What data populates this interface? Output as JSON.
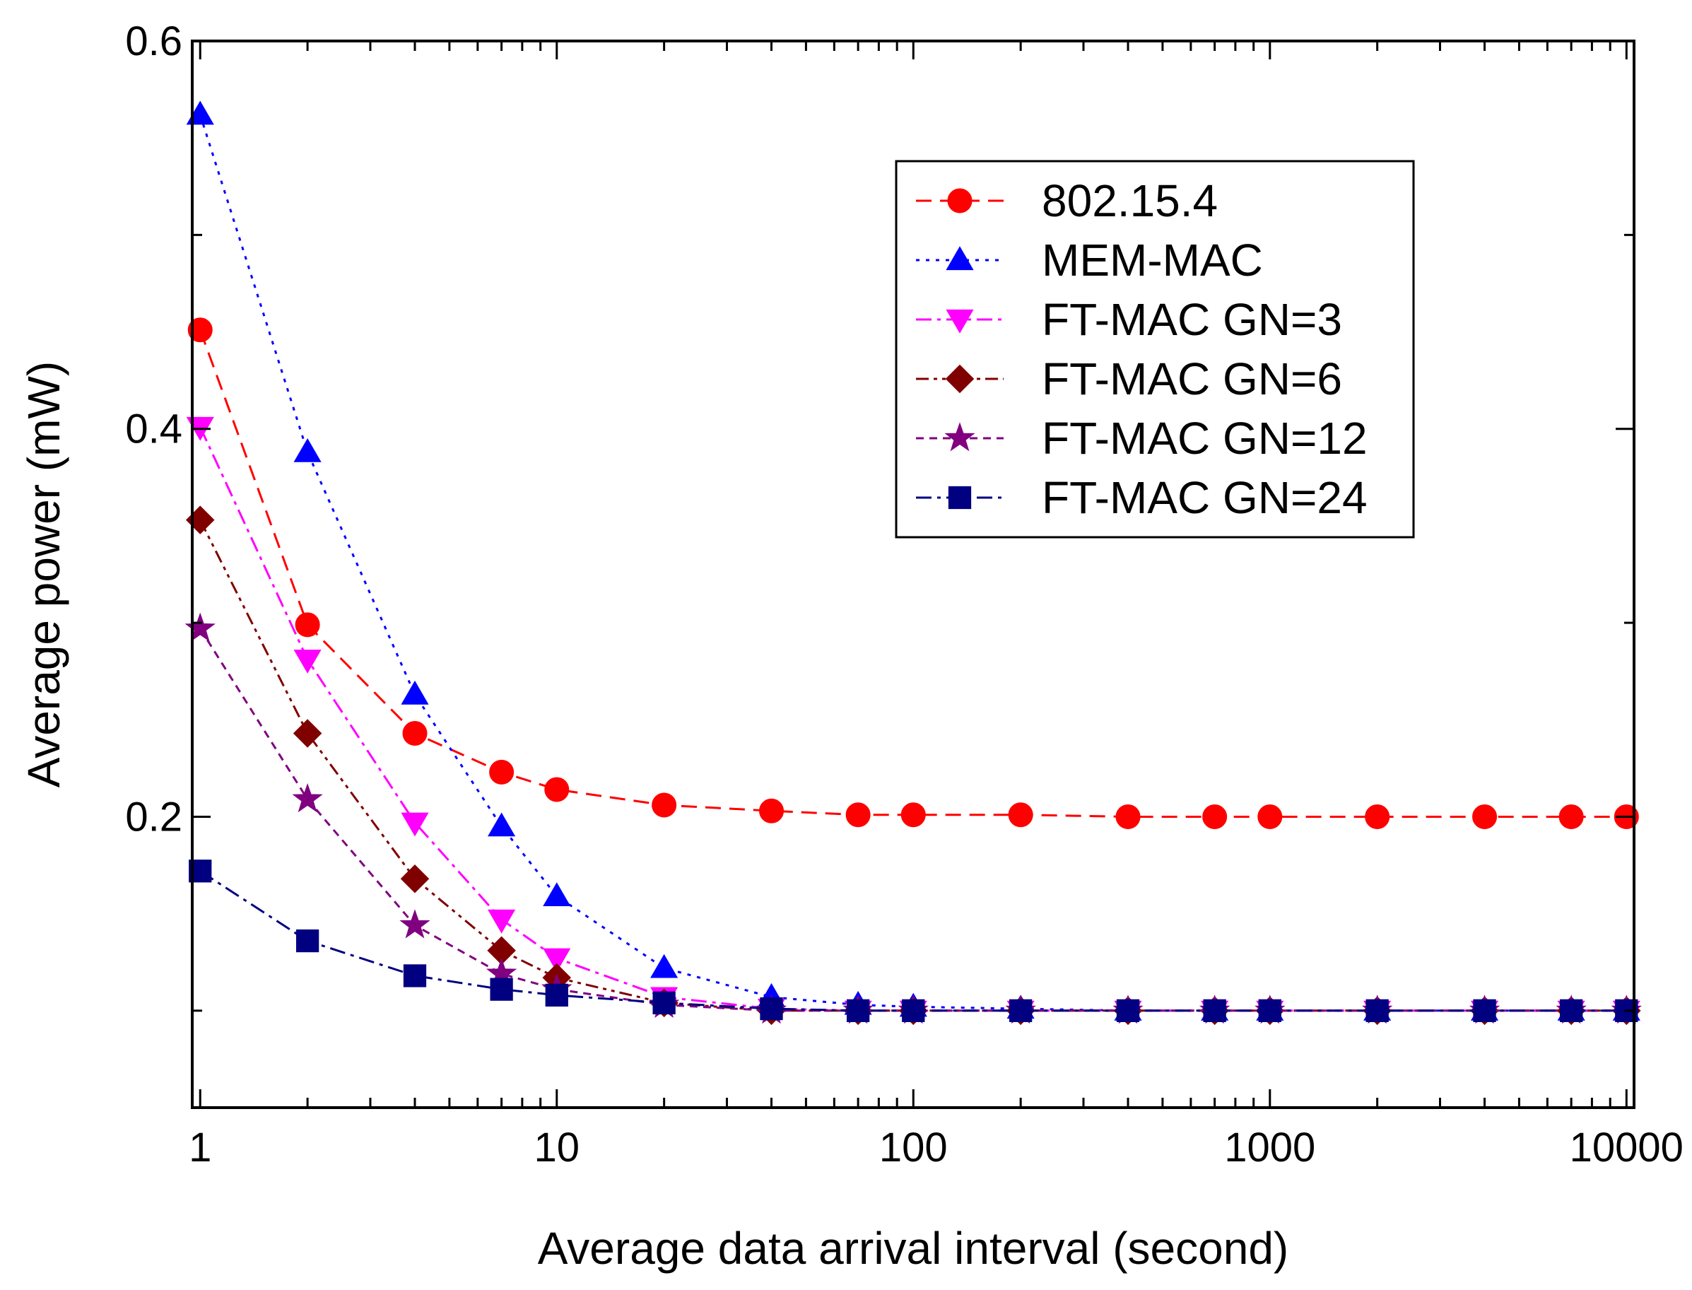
{
  "chart_data": {
    "type": "line",
    "title": "",
    "xlabel": "Average data arrival interval (second)",
    "ylabel": "Average power (mW)",
    "xscale": "log",
    "xlim": [
      0.95,
      10500
    ],
    "ylim": [
      0.05,
      0.6
    ],
    "x_tick_values": [
      1,
      10,
      100,
      1000,
      10000
    ],
    "x_tick_labels": [
      "1",
      "10",
      "100",
      "1000",
      "10000"
    ],
    "y_tick_values": [
      0.2,
      0.4,
      0.6
    ],
    "y_tick_labels": [
      "0.2",
      "0.4",
      "0.6"
    ],
    "legend_position": "top-right",
    "x": [
      1,
      2,
      4,
      7,
      10,
      20,
      40,
      70,
      100,
      200,
      400,
      700,
      1000,
      2000,
      4000,
      7000,
      10000
    ],
    "series": [
      {
        "name": "802.15.4",
        "color": "#ff0000",
        "marker": "circle",
        "line_style": "dashed",
        "values": [
          0.451,
          0.299,
          0.243,
          0.223,
          0.214,
          0.206,
          0.203,
          0.201,
          0.201,
          0.201,
          0.2,
          0.2,
          0.2,
          0.2,
          0.2,
          0.2,
          0.2
        ]
      },
      {
        "name": "MEM-MAC",
        "color": "#0000ff",
        "marker": "triangle-up",
        "line_style": "dotted",
        "values": [
          0.562,
          0.388,
          0.263,
          0.195,
          0.159,
          0.122,
          0.107,
          0.103,
          0.102,
          0.101,
          0.1,
          0.1,
          0.1,
          0.1,
          0.1,
          0.1,
          0.1
        ]
      },
      {
        "name": "FT-MAC GN=3",
        "color": "#ff00ff",
        "marker": "triangle-down",
        "line_style": "dash-dot",
        "values": [
          0.401,
          0.281,
          0.197,
          0.147,
          0.127,
          0.107,
          0.101,
          0.1,
          0.1,
          0.1,
          0.1,
          0.1,
          0.1,
          0.1,
          0.1,
          0.1,
          0.1
        ]
      },
      {
        "name": "FT-MAC GN=6",
        "color": "#800000",
        "marker": "diamond",
        "line_style": "dash-dot-dot",
        "values": [
          0.353,
          0.243,
          0.168,
          0.131,
          0.117,
          0.104,
          0.1,
          0.1,
          0.1,
          0.1,
          0.1,
          0.1,
          0.1,
          0.1,
          0.1,
          0.1,
          0.1
        ]
      },
      {
        "name": "FT-MAC GN=12",
        "color": "#800080",
        "marker": "star",
        "line_style": "short-dashed",
        "values": [
          0.297,
          0.209,
          0.144,
          0.119,
          0.111,
          0.103,
          0.1,
          0.1,
          0.1,
          0.1,
          0.1,
          0.1,
          0.1,
          0.1,
          0.1,
          0.1,
          0.1
        ]
      },
      {
        "name": "FT-MAC GN=24",
        "color": "#000080",
        "marker": "square",
        "line_style": "dash-dot",
        "values": [
          0.172,
          0.136,
          0.118,
          0.111,
          0.108,
          0.104,
          0.101,
          0.1,
          0.1,
          0.1,
          0.1,
          0.1,
          0.1,
          0.1,
          0.1,
          0.1,
          0.1
        ]
      }
    ]
  }
}
